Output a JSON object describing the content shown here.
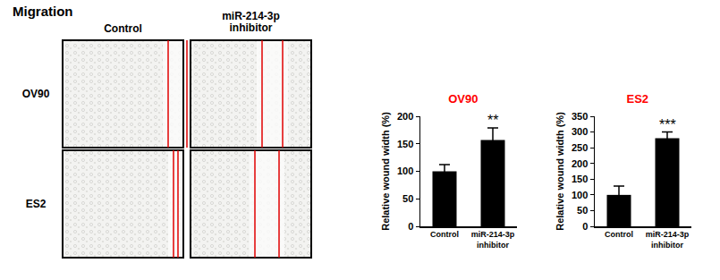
{
  "heading": "Migration",
  "images": {
    "columns": [
      "Control",
      "miR-214-3p inhibitor"
    ],
    "rows": [
      "OV90",
      "ES2"
    ]
  },
  "chart_data": [
    {
      "type": "bar",
      "title": "OV90",
      "ylabel": "Relative wound width (%)",
      "categories": [
        "Control",
        "miR-214-3p inhibitor"
      ],
      "values": [
        100,
        157
      ],
      "errors": [
        12,
        22
      ],
      "color": "#000000",
      "ylim": [
        0,
        200
      ],
      "yticks": [
        0,
        50,
        100,
        150,
        200
      ],
      "grid": false,
      "annotations": [
        {
          "category": "miR-214-3p inhibitor",
          "text": "**"
        }
      ]
    },
    {
      "type": "bar",
      "title": "ES2",
      "ylabel": "Relative wound width (%)",
      "categories": [
        "Control",
        "miR-214-3p inhibitor"
      ],
      "values": [
        100,
        280
      ],
      "errors": [
        28,
        20
      ],
      "color": "#000000",
      "ylim": [
        0,
        350
      ],
      "yticks": [
        0,
        50,
        100,
        150,
        200,
        250,
        300,
        350
      ],
      "grid": false,
      "annotations": [
        {
          "category": "miR-214-3p inhibitor",
          "text": "***"
        }
      ]
    }
  ]
}
